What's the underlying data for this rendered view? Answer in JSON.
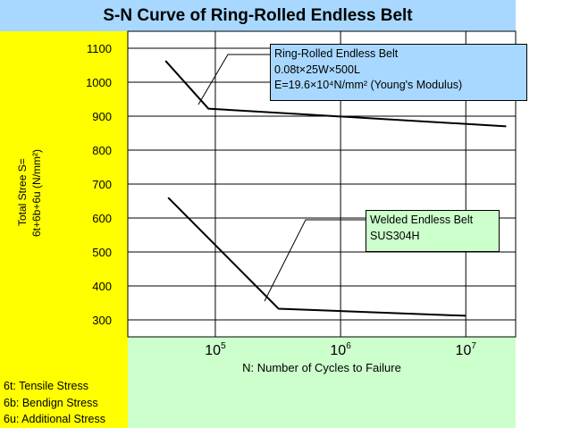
{
  "chart_data": {
    "type": "line",
    "title": "S-N Curve of Ring-Rolled Endless Belt",
    "xlabel": "N: Number of Cycles to Failure",
    "ylabel_lines": [
      "Total Stree S=",
      "6t+6b+6u (N/mm²)"
    ],
    "x_scale": "log",
    "xlim": [
      20000,
      25000000
    ],
    "ylim": [
      250,
      1150
    ],
    "x_ticks": [
      {
        "base": "10",
        "exp": "5",
        "value": 100000
      },
      {
        "base": "10",
        "exp": "6",
        "value": 1000000
      },
      {
        "base": "10",
        "exp": "7",
        "value": 10000000
      }
    ],
    "y_ticks": [
      300,
      400,
      500,
      600,
      700,
      800,
      900,
      1000,
      1100
    ],
    "grid": true,
    "series": [
      {
        "name": "Ring-Rolled Endless Belt",
        "x": [
          40000,
          88000,
          21000000
        ],
        "y": [
          1063,
          922,
          870
        ]
      },
      {
        "name": "Welded Endless Belt",
        "x": [
          42000,
          320000,
          10000000
        ],
        "y": [
          660,
          333,
          312
        ]
      }
    ],
    "annotations": [
      {
        "id": "ring",
        "lines": [
          "Ring-Rolled Endless Belt",
          "0.08t×25W×500L",
          "E=19.6×10⁴N/mm² (Young's Modulus)"
        ],
        "color": "#a8d8ff"
      },
      {
        "id": "welded",
        "lines": [
          "Welded Endless Belt",
          "SUS304H"
        ],
        "color": "#ccffcc"
      }
    ],
    "notes": [
      "6t: Tensile Stress",
      "6b: Bendign Stress",
      "6u: Additional Stress"
    ]
  },
  "colors": {
    "title_bg": "#a8d8ff",
    "left_panel": "#ffff00",
    "bottom_panel": "#ccffcc",
    "line": "#000000",
    "grid": "#000000"
  }
}
